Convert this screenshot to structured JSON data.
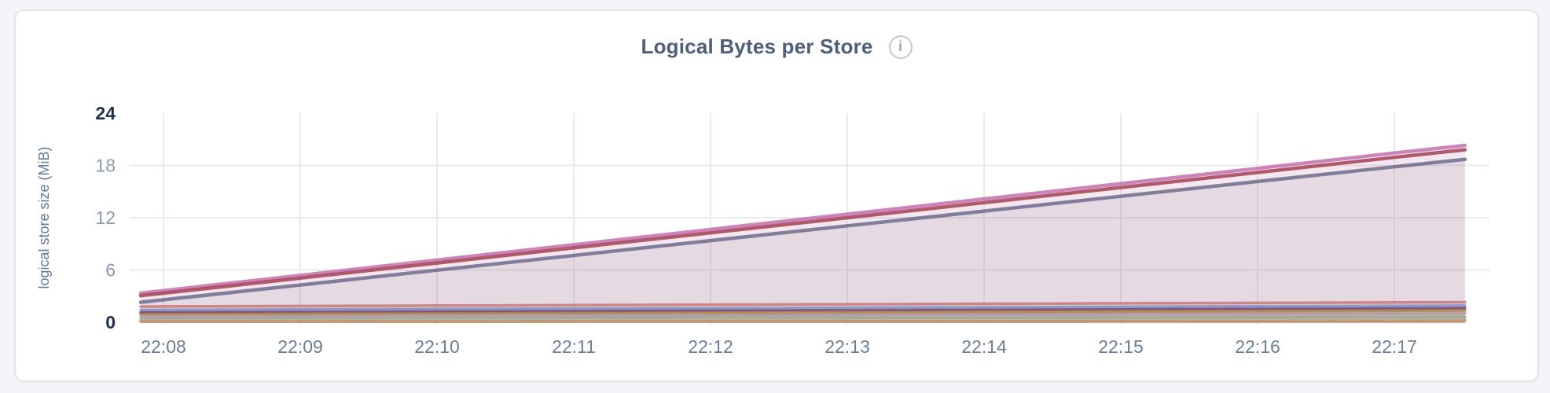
{
  "header": {
    "title": "Logical Bytes per Store",
    "info_glyph": "i",
    "info_icon_name": "info-circle-icon"
  },
  "colors": {
    "page-bg": "#f4f5f9",
    "card-bg": "#ffffff",
    "card-border": "#e4e5e9",
    "grid": "#ebebee",
    "title": "#4d5f7a",
    "icon-ring": "#c4c7cd",
    "icon-glyph": "#a2a7af",
    "x-tick": "#6b7e96",
    "y-tick-light": "#8a99ac",
    "y-tick-dark": "#1d3050",
    "axis-title": "#64789a"
  },
  "chart_data": {
    "type": "area",
    "title": "Logical Bytes per Store",
    "xlabel": "",
    "ylabel": "logical store size (MiB)",
    "ylim": [
      0,
      24
    ],
    "grid": true,
    "legend": "none",
    "x_unit": "seconds after 22:00",
    "x_range": [
      470,
      1051
    ],
    "y_ticks": [
      {
        "value": 24,
        "label": "24",
        "emphasized": true,
        "gridline": false
      },
      {
        "value": 18,
        "label": "18",
        "emphasized": false,
        "gridline": true
      },
      {
        "value": 12,
        "label": "12",
        "emphasized": false,
        "gridline": true
      },
      {
        "value": 6,
        "label": "6",
        "emphasized": false,
        "gridline": true
      },
      {
        "value": 0,
        "label": "0",
        "emphasized": true,
        "gridline": false
      }
    ],
    "x_ticks": [
      {
        "t": 480,
        "label": "22:08"
      },
      {
        "t": 540,
        "label": "22:09"
      },
      {
        "t": 600,
        "label": "22:10"
      },
      {
        "t": 660,
        "label": "22:11"
      },
      {
        "t": 720,
        "label": "22:12"
      },
      {
        "t": 780,
        "label": "22:13"
      },
      {
        "t": 840,
        "label": "22:14"
      },
      {
        "t": 900,
        "label": "22:15"
      },
      {
        "t": 960,
        "label": "22:16"
      },
      {
        "t": 1020,
        "label": "22:17"
      }
    ],
    "x_points": [
      470,
      480,
      540,
      600,
      660,
      720,
      780,
      840,
      900,
      960,
      1020,
      1051
    ],
    "series": [
      {
        "name": "magenta",
        "color": "#c36fad",
        "stroke_width": 4.5,
        "fill_opacity": 0.07,
        "values": [
          3.35,
          3.64,
          5.39,
          7.15,
          8.9,
          10.66,
          12.41,
          14.16,
          15.92,
          17.67,
          19.43,
          20.3
        ]
      },
      {
        "name": "maroon",
        "color": "#a23f55",
        "stroke_width": 4.5,
        "fill_opacity": 0.07,
        "values": [
          3.05,
          3.34,
          5.07,
          6.8,
          8.54,
          10.27,
          12.0,
          13.73,
          15.47,
          17.2,
          18.93,
          19.8
        ]
      },
      {
        "name": "slate",
        "color": "#6f6b8e",
        "stroke_width": 4.5,
        "fill_opacity": 0.1,
        "values": [
          2.3,
          2.58,
          4.28,
          5.98,
          7.67,
          9.37,
          11.07,
          12.76,
          14.46,
          16.16,
          17.85,
          18.7
        ]
      },
      {
        "name": "salmon",
        "color": "#c97878",
        "stroke_width": 3.5,
        "fill_opacity": 0.09,
        "values": [
          1.8,
          1.81,
          1.86,
          1.91,
          1.96,
          2.02,
          2.07,
          2.12,
          2.17,
          2.22,
          2.27,
          2.3
        ]
      },
      {
        "name": "steel-blue",
        "color": "#7b90c2",
        "stroke_width": 3.5,
        "fill_opacity": 0.09,
        "values": [
          1.4,
          1.41,
          1.46,
          1.51,
          1.56,
          1.61,
          1.66,
          1.71,
          1.77,
          1.82,
          1.87,
          1.9
        ]
      },
      {
        "name": "plum",
        "color": "#7c3e72",
        "stroke_width": 3.5,
        "fill_opacity": 0.09,
        "values": [
          1.1,
          1.11,
          1.16,
          1.21,
          1.26,
          1.31,
          1.36,
          1.41,
          1.47,
          1.52,
          1.57,
          1.6
        ]
      },
      {
        "name": "olive",
        "color": "#a78a45",
        "stroke_width": 3.5,
        "fill_opacity": 0.09,
        "values": [
          0.9,
          0.91,
          0.95,
          1.0,
          1.04,
          1.09,
          1.14,
          1.18,
          1.23,
          1.27,
          1.32,
          1.35
        ]
      },
      {
        "name": "mauve",
        "color": "#b795a8",
        "stroke_width": 3.5,
        "fill_opacity": 0.09,
        "values": [
          0.65,
          0.66,
          0.69,
          0.73,
          0.76,
          0.8,
          0.83,
          0.87,
          0.9,
          0.94,
          0.97,
          1.0
        ]
      },
      {
        "name": "green",
        "color": "#8bb287",
        "stroke_width": 3.5,
        "fill_opacity": 0.09,
        "values": [
          0.35,
          0.35,
          0.38,
          0.4,
          0.43,
          0.45,
          0.48,
          0.5,
          0.53,
          0.55,
          0.58,
          0.6
        ]
      },
      {
        "name": "dusty-pink",
        "color": "#c7a7b8",
        "stroke_width": 3.5,
        "fill_opacity": 0.09,
        "values": [
          0.2,
          0.2,
          0.21,
          0.22,
          0.23,
          0.24,
          0.25,
          0.26,
          0.27,
          0.28,
          0.29,
          0.3
        ]
      },
      {
        "name": "tan",
        "color": "#c0975e",
        "stroke_width": 3.5,
        "fill_opacity": 0.09,
        "values": [
          0.08,
          0.08,
          0.09,
          0.09,
          0.1,
          0.11,
          0.11,
          0.12,
          0.13,
          0.13,
          0.14,
          0.15
        ]
      }
    ]
  }
}
